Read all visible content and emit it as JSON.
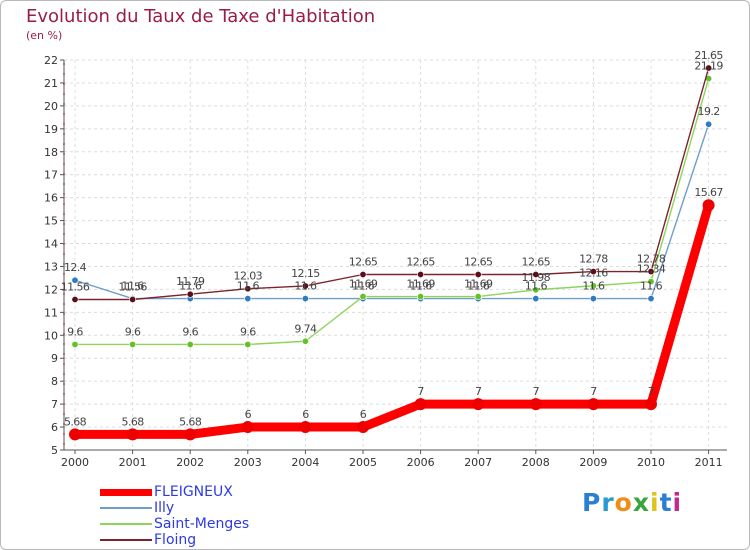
{
  "header": {
    "title": "Evolution du Taux de Taxe d'Habitation",
    "subtitle": "(en %)"
  },
  "chart_data": {
    "type": "line",
    "title": "Evolution du Taux de Taxe d'Habitation",
    "ylabel": "(en %)",
    "xlabel": "",
    "ylim": [
      5,
      22
    ],
    "yticks": [
      5,
      6,
      7,
      8,
      9,
      10,
      11,
      12,
      13,
      14,
      15,
      16,
      17,
      18,
      19,
      20,
      21,
      22
    ],
    "categories": [
      "2000",
      "2001",
      "2002",
      "2003",
      "2004",
      "2005",
      "2006",
      "2007",
      "2008",
      "2009",
      "2010",
      "2011"
    ],
    "grid": true,
    "legend_position": "bottom-left",
    "series": [
      {
        "name": "Illy",
        "color": "#6f9ec9",
        "marker_color": "#2f7bbf",
        "values": [
          12.4,
          11.6,
          11.6,
          11.6,
          11.6,
          11.6,
          11.6,
          11.6,
          11.6,
          11.6,
          11.6,
          19.2
        ],
        "labels": [
          "12.4",
          "11.6",
          "11.6",
          "11.6",
          "11.6",
          "11.6",
          "11.6",
          "11.6",
          "11.6",
          "11.6",
          "11.6",
          "19.2"
        ]
      },
      {
        "name": "Saint-Menges",
        "color": "#8fd45a",
        "marker_color": "#66c02a",
        "values": [
          9.6,
          9.6,
          9.6,
          9.6,
          9.74,
          11.69,
          11.69,
          11.69,
          11.98,
          12.16,
          12.34,
          21.19
        ],
        "labels": [
          "9.6",
          "9.6",
          "9.6",
          "9.6",
          "9.74",
          "11.69",
          "11.69",
          "11.69",
          "11.98",
          "12.16",
          "12.34",
          "21.19"
        ]
      },
      {
        "name": "Floing",
        "color": "#7a2430",
        "marker_color": "#5c0f1a",
        "values": [
          11.56,
          11.56,
          11.79,
          12.03,
          12.15,
          12.65,
          12.65,
          12.65,
          12.65,
          12.78,
          12.78,
          21.65
        ],
        "labels": [
          "11.56",
          "11.56",
          "11.79",
          "12.03",
          "12.15",
          "12.65",
          "12.65",
          "12.65",
          "12.65",
          "12.78",
          "12.78",
          "21.65"
        ]
      },
      {
        "name": "FLEIGNEUX",
        "color": "#ff0000",
        "marker_color": "#ee0000",
        "values": [
          5.68,
          5.68,
          5.68,
          6,
          6,
          6,
          7,
          7,
          7,
          7,
          7,
          15.67
        ],
        "labels": [
          "5.68",
          "5.68",
          "5.68",
          "6",
          "6",
          "6",
          "7",
          "7",
          "7",
          "7",
          "7",
          "15.67"
        ]
      }
    ]
  },
  "legend": {
    "items": [
      {
        "label": "FLEIGNEUX",
        "color": "#ff0000"
      },
      {
        "label": "Illy",
        "color": "#6f9ec9"
      },
      {
        "label": "Saint-Menges",
        "color": "#8fd45a"
      },
      {
        "label": "Floing",
        "color": "#7a2430"
      }
    ]
  },
  "logo": {
    "text": "Proxiti",
    "letters": [
      "P",
      "r",
      "o",
      "x",
      "i",
      "t",
      "i"
    ],
    "colors": [
      "#2a7fd4",
      "#2a9ad4",
      "#f08c1a",
      "#3aa53a",
      "#e0c21a",
      "#2a7fd4",
      "#c02a8a"
    ]
  }
}
